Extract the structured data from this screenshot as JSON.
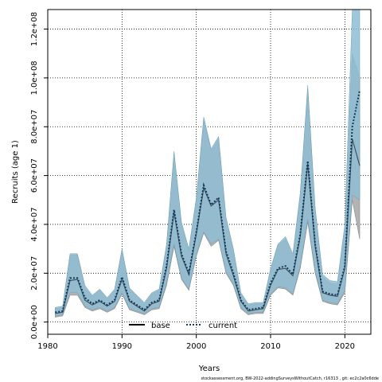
{
  "chart_data": {
    "type": "line",
    "title": "",
    "xlabel": "Years",
    "ylabel": "Recruits (age 1)",
    "xlim": [
      1980,
      2023.5
    ],
    "ylim": [
      -5000000,
      128000000
    ],
    "x_ticks": [
      1980,
      1990,
      2000,
      2010,
      2020
    ],
    "y_ticks": [
      0,
      20000000,
      40000000,
      60000000,
      80000000,
      100000000,
      120000000
    ],
    "x_tick_labels": [
      "1980",
      "1990",
      "2000",
      "2010",
      "2020"
    ],
    "y_tick_labels": [
      "0.0e+00",
      "2.0e+07",
      "4.0e+07",
      "6.0e+07",
      "8.0e+07",
      "1.0e+08",
      "1.2e+08"
    ],
    "grid": true,
    "legend_position": "bottom-center",
    "colors": {
      "base": "#000000",
      "current": "#0f3b5c",
      "band_base": "#b3b3b3",
      "band_current": "#8fbcd4",
      "band_current_end": "#a8d8ee"
    },
    "series": [
      {
        "name": "base",
        "x": [
          1981,
          1982,
          1983,
          1984,
          1985,
          1986,
          1987,
          1988,
          1989,
          1990,
          1991,
          1992,
          1993,
          1994,
          1995,
          1996,
          1997,
          1998,
          1999,
          2000,
          2001,
          2002,
          2003,
          2004,
          2005,
          2006,
          2007,
          2008,
          2009,
          2010,
          2011,
          2012,
          2013,
          2014,
          2015,
          2016,
          2017,
          2018,
          2019,
          2020,
          2021,
          2022
        ],
        "values": [
          3500000,
          4000000,
          17000000,
          17500000,
          9000000,
          7000000,
          8500000,
          6500000,
          8500000,
          17500000,
          8500000,
          6500000,
          4500000,
          7500000,
          8500000,
          22000000,
          45000000,
          27000000,
          19500000,
          36000000,
          55000000,
          47500000,
          50000000,
          28000000,
          19000000,
          8500000,
          4500000,
          5000000,
          5500000,
          15000000,
          21500000,
          22000000,
          19000000,
          35000000,
          65000000,
          31000000,
          12000000,
          11000000,
          10500000,
          22000000,
          75000000,
          64000000
        ],
        "lower": [
          2000000,
          2500000,
          11000000,
          11000000,
          6000000,
          4500000,
          5500000,
          4000000,
          5500000,
          11500000,
          5000000,
          4000000,
          3000000,
          5000000,
          5500000,
          15000000,
          31000000,
          17500000,
          13000000,
          27000000,
          36500000,
          31000000,
          33500000,
          20000000,
          15000000,
          5500000,
          3000000,
          3500000,
          3500000,
          11000000,
          14000000,
          13500000,
          11000000,
          22000000,
          41000000,
          20000000,
          8500000,
          7500000,
          7000000,
          12000000,
          50000000,
          34000000
        ],
        "upper": [
          5500000,
          6000000,
          27500000,
          27500000,
          14000000,
          10500000,
          13000000,
          9500000,
          13000000,
          29000000,
          13500000,
          10500000,
          7500000,
          11500000,
          13000000,
          31000000,
          69000000,
          40000000,
          29000000,
          50000000,
          83000000,
          70000000,
          75000000,
          42000000,
          29000000,
          11500000,
          7000000,
          7500000,
          7500000,
          21000000,
          31500000,
          34000000,
          27000000,
          52000000,
          95000000,
          46000000,
          18500000,
          16000000,
          15500000,
          38000000,
          110000000,
          100000000
        ]
      },
      {
        "name": "current",
        "x": [
          1981,
          1982,
          1983,
          1984,
          1985,
          1986,
          1987,
          1988,
          1989,
          1990,
          1991,
          1992,
          1993,
          1994,
          1995,
          1996,
          1997,
          1998,
          1999,
          2000,
          2001,
          2002,
          2003,
          2004,
          2005,
          2006,
          2007,
          2008,
          2009,
          2010,
          2011,
          2012,
          2013,
          2014,
          2015,
          2016,
          2017,
          2018,
          2019,
          2020,
          2021,
          2022
        ],
        "values": [
          4000000,
          4500000,
          18000000,
          18000000,
          10000000,
          7500000,
          9000000,
          7000000,
          9000000,
          18500000,
          9000000,
          7000000,
          5000000,
          8000000,
          9000000,
          23000000,
          46000000,
          28000000,
          20000000,
          37000000,
          56000000,
          48000000,
          51000000,
          29000000,
          20000000,
          9000000,
          5000000,
          5500000,
          6000000,
          16000000,
          22000000,
          23000000,
          19500000,
          36000000,
          66000000,
          32000000,
          12500000,
          11500000,
          11000000,
          23000000,
          80000000,
          95000000
        ],
        "lower": [
          2500000,
          3000000,
          12000000,
          12000000,
          6500000,
          5000000,
          6000000,
          4500000,
          6000000,
          12000000,
          5500000,
          4500000,
          3500000,
          5500000,
          6000000,
          16000000,
          32000000,
          18000000,
          13500000,
          27500000,
          37000000,
          32000000,
          34000000,
          20500000,
          15500000,
          6000000,
          3500000,
          4000000,
          4000000,
          11500000,
          14500000,
          14000000,
          11500000,
          23000000,
          42000000,
          21000000,
          9000000,
          8000000,
          7500000,
          13000000,
          52000000,
          50000000
        ],
        "upper": [
          6000000,
          6500000,
          28000000,
          28000000,
          15000000,
          11000000,
          13500000,
          10000000,
          13500000,
          30000000,
          14000000,
          11000000,
          8000000,
          12000000,
          13500000,
          32000000,
          70000000,
          41000000,
          30000000,
          51000000,
          84000000,
          71000000,
          76000000,
          43000000,
          30000000,
          12000000,
          7500000,
          8000000,
          8000000,
          22000000,
          32000000,
          35000000,
          28000000,
          53000000,
          97000000,
          47000000,
          19500000,
          17000000,
          16500000,
          40000000,
          128000000,
          128000000
        ]
      }
    ],
    "legend": [
      {
        "name": "base",
        "style": "solid"
      },
      {
        "name": "current",
        "style": "dotted"
      }
    ],
    "footer": "stockassessment.org, BW-2022-addingSurveysWithoutCatch, r16313 , git: ec2c2a0c6dde"
  }
}
